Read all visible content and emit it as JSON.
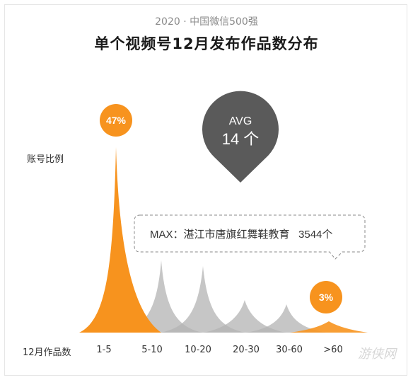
{
  "header": {
    "eyebrow": "2020 · 中国微信500强",
    "title": "单个视频号12月发布作品数分布"
  },
  "watermark": "游侠网",
  "colors": {
    "accent": "#f7931e",
    "gray": "#b3b3b3",
    "avg_bubble": "#5a5a5a"
  },
  "chart_data": {
    "type": "area",
    "title": "单个视频号12月发布作品数分布",
    "xlabel": "12月作品数",
    "ylabel": "账号比例",
    "categories": [
      "1-5",
      "5-10",
      "10-20",
      "20-30",
      "30-60",
      ">60"
    ],
    "series": [
      {
        "values": [
          47,
          null,
          null,
          null,
          null,
          3
        ]
      }
    ],
    "data_labels": {
      "1-5": "47%",
      ">60": "3%"
    },
    "annotations": {
      "avg_label": "AVG",
      "avg_value": "14 个",
      "max_text": "MAX：湛江市唐旗红舞鞋教育   3544个"
    },
    "grid": false,
    "legend": "none"
  }
}
